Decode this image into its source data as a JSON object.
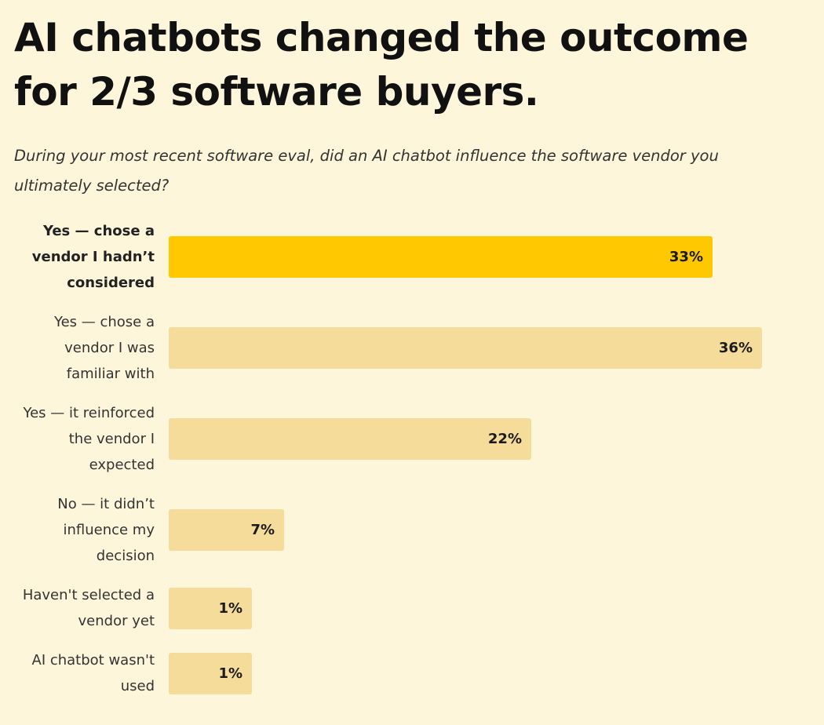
{
  "chart_data": {
    "type": "bar",
    "orientation": "horizontal",
    "title": "AI chatbots changed the outcome for 2/3 software buyers.",
    "subtitle": "During your most recent software eval, did an AI chatbot influence the software vendor you ultimately selected?",
    "categories": [
      "Yes — chose a vendor I hadn’t considered",
      "Yes — chose a vendor I was familiar with",
      "Yes — it reinforced the vendor I expected",
      "No — it didn’t influence my decision",
      "Haven't selected a vendor yet",
      "AI chatbot wasn't used"
    ],
    "values": [
      33,
      36,
      22,
      7,
      1,
      1
    ],
    "value_labels": [
      "33%",
      "36%",
      "22%",
      "7%",
      "1%",
      "1%"
    ],
    "highlighted_index": 0,
    "unit": "%",
    "colors": {
      "highlight": "#FFC800",
      "default": "#F5DC9B",
      "background": "#FEF6DA"
    }
  }
}
